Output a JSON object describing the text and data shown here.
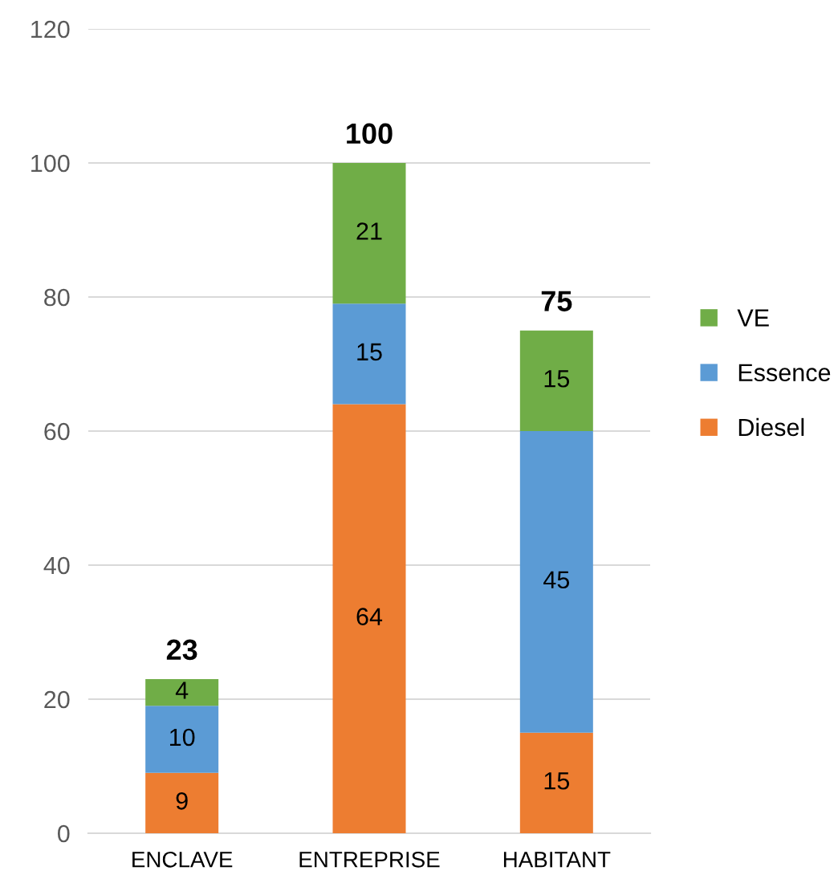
{
  "chart_data": {
    "type": "bar",
    "stacked": true,
    "categories": [
      "ENCLAVE",
      "ENTREPRISE",
      "HABITANT"
    ],
    "series": [
      {
        "name": "Diesel",
        "color": "#ed7d31",
        "values": [
          9,
          64,
          15
        ]
      },
      {
        "name": "Essence",
        "color": "#5b9bd5",
        "values": [
          10,
          15,
          45
        ]
      },
      {
        "name": "VE",
        "color": "#70ad47",
        "values": [
          4,
          21,
          15
        ]
      }
    ],
    "totals": [
      "23",
      "100",
      "75"
    ],
    "data_labels": true,
    "ylim": [
      0,
      120
    ],
    "yticks": [
      0,
      20,
      40,
      60,
      80,
      100,
      120
    ],
    "grid": "y",
    "legend": "right"
  }
}
